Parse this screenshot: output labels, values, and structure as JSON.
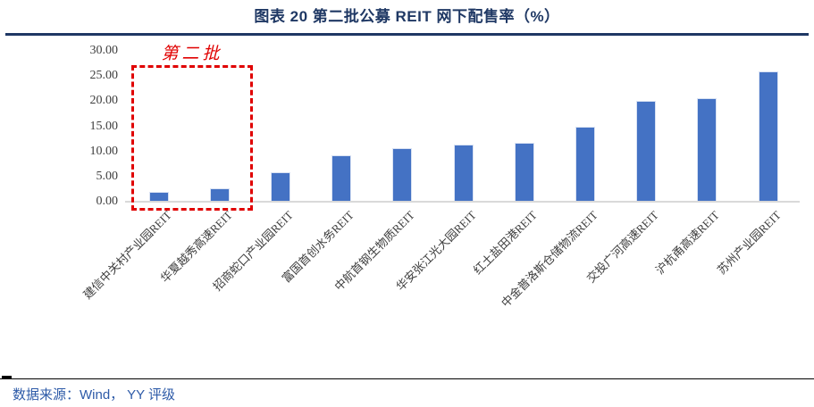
{
  "header": {
    "title": "图表 20 第二批公募 REIT 网下配售率（%）"
  },
  "chart_data": {
    "type": "bar",
    "title": "图表 20 第二批公募 REIT 网下配售率（%）",
    "categories": [
      "建信中关村产业园REIT",
      "华夏越秀高速REIT",
      "招商蛇口产业园REIT",
      "富国首创水务REIT",
      "中航首钢生物质REIT",
      "华安张江光大园REIT",
      "红土盐田港REIT",
      "中金普洛斯仓储物流REIT",
      "交投广河高速REIT",
      "沪杭甬高速REIT",
      "苏州产业园REIT"
    ],
    "values": [
      1.9,
      2.6,
      5.9,
      9.3,
      10.7,
      11.3,
      11.8,
      15.0,
      20.1,
      20.6,
      26.0
    ],
    "xlabel": "",
    "ylabel": "",
    "ylim": [
      0,
      30
    ],
    "ytick_step": 5,
    "ytick_labels": [
      "0.00",
      "5.00",
      "10.00",
      "15.00",
      "20.00",
      "25.00",
      "30.00"
    ],
    "grid": false,
    "legend": "none",
    "bar_color": "#4472C4",
    "annotation": {
      "label": "第二批",
      "color": "#E00000",
      "covered_categories": [
        "建信中关村产业园REIT",
        "华夏越秀高速REIT"
      ]
    }
  },
  "footer": {
    "source_text": "数据来源：Wind， YY 评级"
  },
  "colors": {
    "title_navy": "#1F3864",
    "bar_blue": "#4472C4",
    "annotation_red": "#E00000",
    "axis_gray": "#D9D9D9",
    "label_gray": "#3d3d3d",
    "source_blue": "#2E5BA8"
  }
}
